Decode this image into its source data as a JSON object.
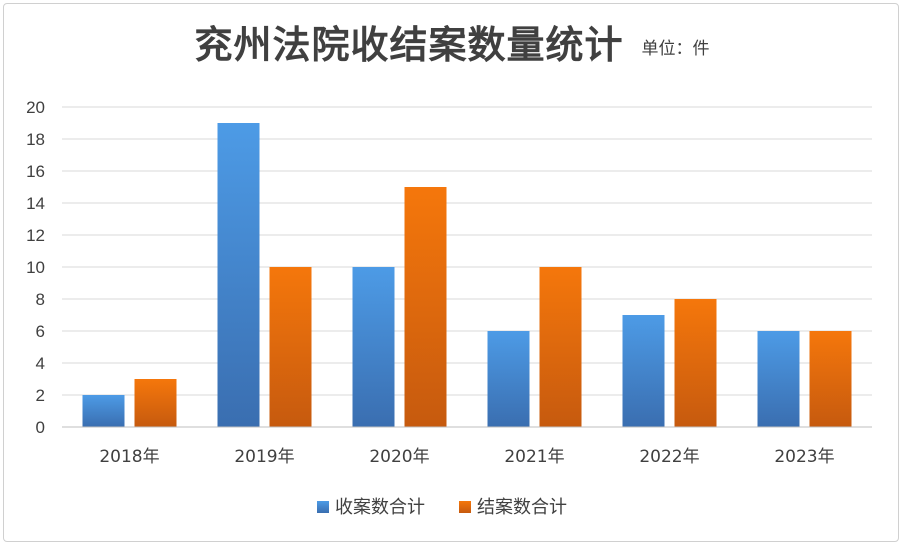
{
  "chart_data": {
    "type": "bar",
    "title": "兖州法院收结案数量统计",
    "unit_label": "单位：件",
    "categories": [
      "2018年",
      "2019年",
      "2020年",
      "2021年",
      "2022年",
      "2023年"
    ],
    "series": [
      {
        "name": "收案数合计",
        "values": [
          2,
          19,
          10,
          6,
          7,
          6
        ],
        "color": "#4a90d9"
      },
      {
        "name": "结案数合计",
        "values": [
          3,
          10,
          15,
          10,
          8,
          6
        ],
        "color": "#e46c0a"
      }
    ],
    "ylim": [
      0,
      20
    ],
    "yticks": [
      0,
      2,
      4,
      6,
      8,
      10,
      12,
      14,
      16,
      18,
      20
    ],
    "grid": true,
    "legend_position": "bottom"
  }
}
